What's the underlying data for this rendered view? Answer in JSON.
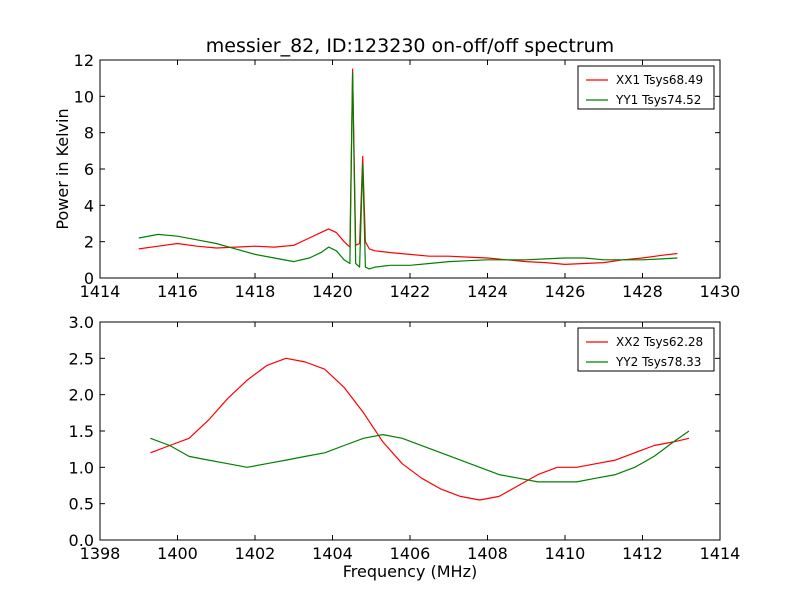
{
  "chart_data": [
    {
      "type": "line",
      "title": "messier_82, ID:123230 on-off/off spectrum",
      "xlabel": "",
      "ylabel": "Power in Kelvin",
      "xlim": [
        1414,
        1430
      ],
      "ylim": [
        0,
        12
      ],
      "xticks": [
        1414,
        1416,
        1418,
        1420,
        1422,
        1424,
        1426,
        1428,
        1430
      ],
      "yticks": [
        0,
        2,
        4,
        6,
        8,
        10,
        12
      ],
      "grid": false,
      "legend": "top-right",
      "series": [
        {
          "name": "XX1 Tsys68.49",
          "color": "#ff0000",
          "x": [
            1415.0,
            1415.5,
            1416.0,
            1416.5,
            1417.0,
            1417.5,
            1418.0,
            1418.5,
            1419.0,
            1419.4,
            1419.7,
            1419.9,
            1420.1,
            1420.3,
            1420.45,
            1420.52,
            1420.6,
            1420.7,
            1420.78,
            1420.85,
            1420.95,
            1421.1,
            1421.5,
            1422.0,
            1422.5,
            1423.0,
            1423.5,
            1424.0,
            1424.5,
            1425.0,
            1425.5,
            1426.0,
            1426.5,
            1427.0,
            1427.5,
            1428.0,
            1428.5,
            1428.9
          ],
          "values": [
            1.6,
            1.75,
            1.9,
            1.75,
            1.65,
            1.7,
            1.75,
            1.7,
            1.8,
            2.2,
            2.5,
            2.7,
            2.5,
            2.0,
            1.7,
            11.5,
            1.8,
            1.9,
            6.7,
            2.0,
            1.6,
            1.5,
            1.4,
            1.3,
            1.2,
            1.2,
            1.15,
            1.1,
            1.0,
            0.9,
            0.85,
            0.75,
            0.8,
            0.85,
            1.0,
            1.1,
            1.25,
            1.35
          ]
        },
        {
          "name": "YY1 Tsys74.52",
          "color": "#008000",
          "x": [
            1415.0,
            1415.5,
            1416.0,
            1416.5,
            1417.0,
            1417.5,
            1418.0,
            1418.5,
            1419.0,
            1419.4,
            1419.7,
            1419.9,
            1420.1,
            1420.3,
            1420.45,
            1420.52,
            1420.6,
            1420.7,
            1420.78,
            1420.85,
            1420.95,
            1421.1,
            1421.5,
            1422.0,
            1422.5,
            1423.0,
            1423.5,
            1424.0,
            1424.5,
            1425.0,
            1425.5,
            1426.0,
            1426.5,
            1427.0,
            1427.5,
            1428.0,
            1428.5,
            1428.9
          ],
          "values": [
            2.2,
            2.4,
            2.3,
            2.1,
            1.9,
            1.6,
            1.3,
            1.1,
            0.9,
            1.1,
            1.4,
            1.7,
            1.5,
            1.0,
            0.8,
            11.3,
            0.8,
            0.6,
            6.3,
            0.6,
            0.5,
            0.6,
            0.7,
            0.7,
            0.8,
            0.9,
            0.95,
            1.0,
            1.0,
            1.0,
            1.05,
            1.1,
            1.1,
            1.0,
            1.0,
            1.0,
            1.05,
            1.1
          ]
        }
      ]
    },
    {
      "type": "line",
      "title": "",
      "xlabel": "Frequency (MHz)",
      "ylabel": "",
      "xlim": [
        1398,
        1414
      ],
      "ylim": [
        0.0,
        3.0
      ],
      "xticks": [
        1398,
        1400,
        1402,
        1404,
        1406,
        1408,
        1410,
        1412,
        1414
      ],
      "yticks": [
        0.0,
        0.5,
        1.0,
        1.5,
        2.0,
        2.5,
        3.0
      ],
      "grid": false,
      "legend": "top-right",
      "series": [
        {
          "name": "XX2 Tsys62.28",
          "color": "#ff0000",
          "x": [
            1399.3,
            1399.8,
            1400.3,
            1400.8,
            1401.3,
            1401.8,
            1402.3,
            1402.8,
            1403.3,
            1403.8,
            1404.3,
            1404.8,
            1405.3,
            1405.8,
            1406.3,
            1406.8,
            1407.3,
            1407.8,
            1408.3,
            1408.8,
            1409.3,
            1409.8,
            1410.3,
            1410.8,
            1411.3,
            1411.8,
            1412.3,
            1412.8,
            1413.2
          ],
          "values": [
            1.2,
            1.3,
            1.4,
            1.65,
            1.95,
            2.2,
            2.4,
            2.5,
            2.45,
            2.35,
            2.1,
            1.75,
            1.35,
            1.05,
            0.85,
            0.7,
            0.6,
            0.55,
            0.6,
            0.75,
            0.9,
            1.0,
            1.0,
            1.05,
            1.1,
            1.2,
            1.3,
            1.35,
            1.4
          ]
        },
        {
          "name": "YY2 Tsys78.33",
          "color": "#008000",
          "x": [
            1399.3,
            1399.8,
            1400.3,
            1400.8,
            1401.3,
            1401.8,
            1402.3,
            1402.8,
            1403.3,
            1403.8,
            1404.3,
            1404.8,
            1405.3,
            1405.8,
            1406.3,
            1406.8,
            1407.3,
            1407.8,
            1408.3,
            1408.8,
            1409.3,
            1409.8,
            1410.3,
            1410.8,
            1411.3,
            1411.8,
            1412.3,
            1412.8,
            1413.2
          ],
          "values": [
            1.4,
            1.3,
            1.15,
            1.1,
            1.05,
            1.0,
            1.05,
            1.1,
            1.15,
            1.2,
            1.3,
            1.4,
            1.45,
            1.4,
            1.3,
            1.2,
            1.1,
            1.0,
            0.9,
            0.85,
            0.8,
            0.8,
            0.8,
            0.85,
            0.9,
            1.0,
            1.15,
            1.35,
            1.5
          ]
        }
      ]
    }
  ]
}
